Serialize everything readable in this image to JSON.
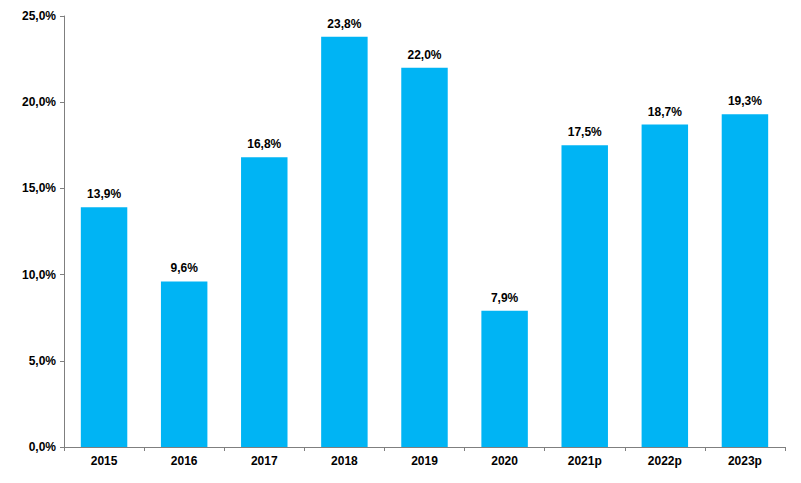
{
  "chart_data": {
    "type": "bar",
    "categories": [
      "2015",
      "2016",
      "2017",
      "2018",
      "2019",
      "2020",
      "2021p",
      "2022p",
      "2023p"
    ],
    "values": [
      13.9,
      9.6,
      16.8,
      23.8,
      22.0,
      7.9,
      17.5,
      18.7,
      19.3
    ],
    "value_labels": [
      "13,9%",
      "9,6%",
      "16,8%",
      "23,8%",
      "22,0%",
      "7,9%",
      "17,5%",
      "18,7%",
      "19,3%"
    ],
    "color": "#00b4f4",
    "ylim": [
      0,
      25
    ],
    "yticks": [
      {
        "value": 0,
        "label": "0,0%"
      },
      {
        "value": 5,
        "label": "5,0%"
      },
      {
        "value": 10,
        "label": "10,0%"
      },
      {
        "value": 15,
        "label": "15,0%"
      },
      {
        "value": 20,
        "label": "20,0%"
      },
      {
        "value": 25,
        "label": "25,0%"
      }
    ],
    "grid": false,
    "data_labels": true
  }
}
